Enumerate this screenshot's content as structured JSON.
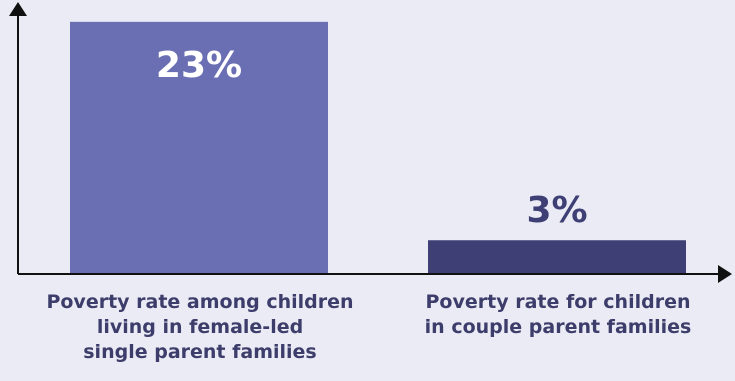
{
  "chart_data": {
    "type": "bar",
    "categories": [
      "Poverty rate among children\nliving in female-led\nsingle parent families",
      "Poverty rate for children\nin couple parent families"
    ],
    "values": [
      23,
      3
    ],
    "value_labels": [
      "23%",
      "3%"
    ],
    "ylim": [
      0,
      25
    ],
    "grid": false,
    "legend": "none",
    "colors": {
      "bars": [
        "#6a6fb4",
        "#3d3f75"
      ],
      "value_labels": [
        "#ffffff",
        "#3d3f75"
      ],
      "axis": "#111111",
      "category_text": "#3d3d6b",
      "background": "#ebebf5"
    }
  }
}
